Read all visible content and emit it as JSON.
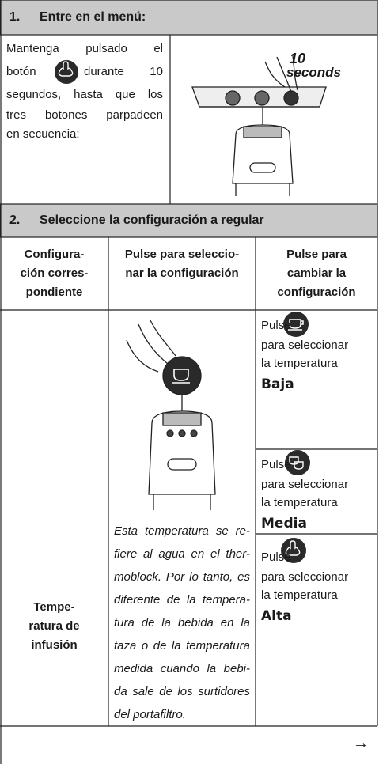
{
  "section1": {
    "number": "1.",
    "title": "Entre en el menú:",
    "intro": {
      "line1": "Mantenga pulsado el",
      "line2_before": "botón",
      "line2_after": "durante 10",
      "rest": [
        "segundos, hasta que los",
        "tres botones parpadeen",
        "en secuencia:"
      ]
    },
    "illustration": {
      "count": "10",
      "unit": "seconds"
    }
  },
  "section2": {
    "number": "2.",
    "title": "Seleccione la configuración a regular",
    "columns": [
      [
        "Configura-",
        "ción corres-",
        "pondiente"
      ],
      [
        "Pulse para seleccio-",
        "nar la configuración"
      ],
      [
        "Pulse para",
        "cambiar la",
        "configuración"
      ]
    ],
    "row": {
      "setting": [
        "Tempe-",
        "ratura de",
        "infusión"
      ],
      "note": [
        "Esta temperatura se re-",
        "fiere al agua en el ther-",
        "moblock. Por lo tanto, es",
        "diferente de la tempera-",
        "tura de la bebida en la",
        "taza o de la temperatura",
        "medida cuando la bebi-",
        "da sale de los surtidores",
        "del portafiltro."
      ],
      "options": [
        {
          "action": "Pulse",
          "text": [
            "para seleccionar",
            "la temperatura"
          ],
          "level": "Baja"
        },
        {
          "action": "Pulse",
          "text": [
            "para seleccionar",
            "la temperatura"
          ],
          "level": "Media"
        },
        {
          "action": "Pulse",
          "text": [
            "para seleccionar",
            "la temperatura"
          ],
          "level": "Alta"
        }
      ]
    }
  },
  "footer": {
    "arrow": "→"
  }
}
